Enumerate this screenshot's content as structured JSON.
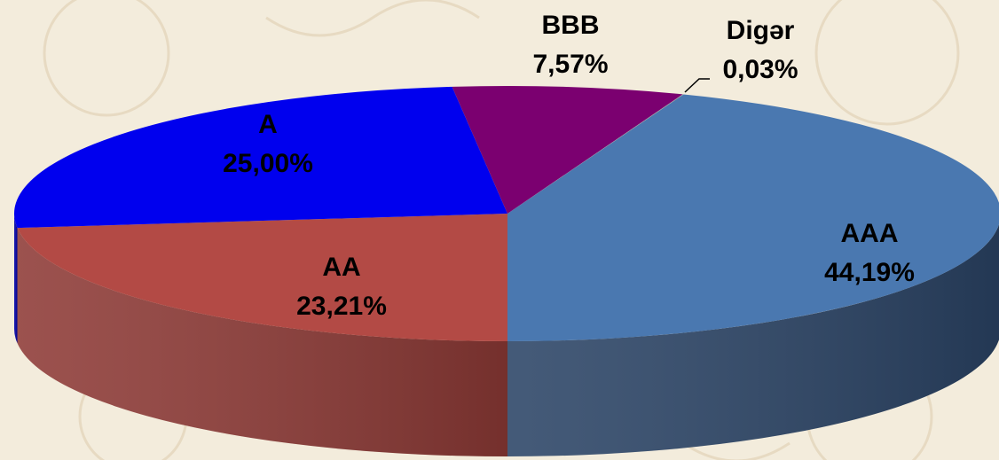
{
  "chart_data": {
    "type": "pie3d",
    "categories": [
      "AAA",
      "AA",
      "A",
      "BBB",
      "Digər"
    ],
    "values": [
      44.19,
      23.21,
      25.0,
      7.57,
      0.03
    ],
    "value_labels": [
      "44,19%",
      "23,21%",
      "25,00%",
      "7,57%",
      "0,03%"
    ],
    "colors": [
      "#4a78b0",
      "#b34a45",
      "#0000ee",
      "#7b0070",
      "#9a9a9a"
    ],
    "side_colors": [
      "#2b4466",
      "#8e3a36",
      "#0000a8",
      "#55004e",
      "#666666"
    ]
  }
}
